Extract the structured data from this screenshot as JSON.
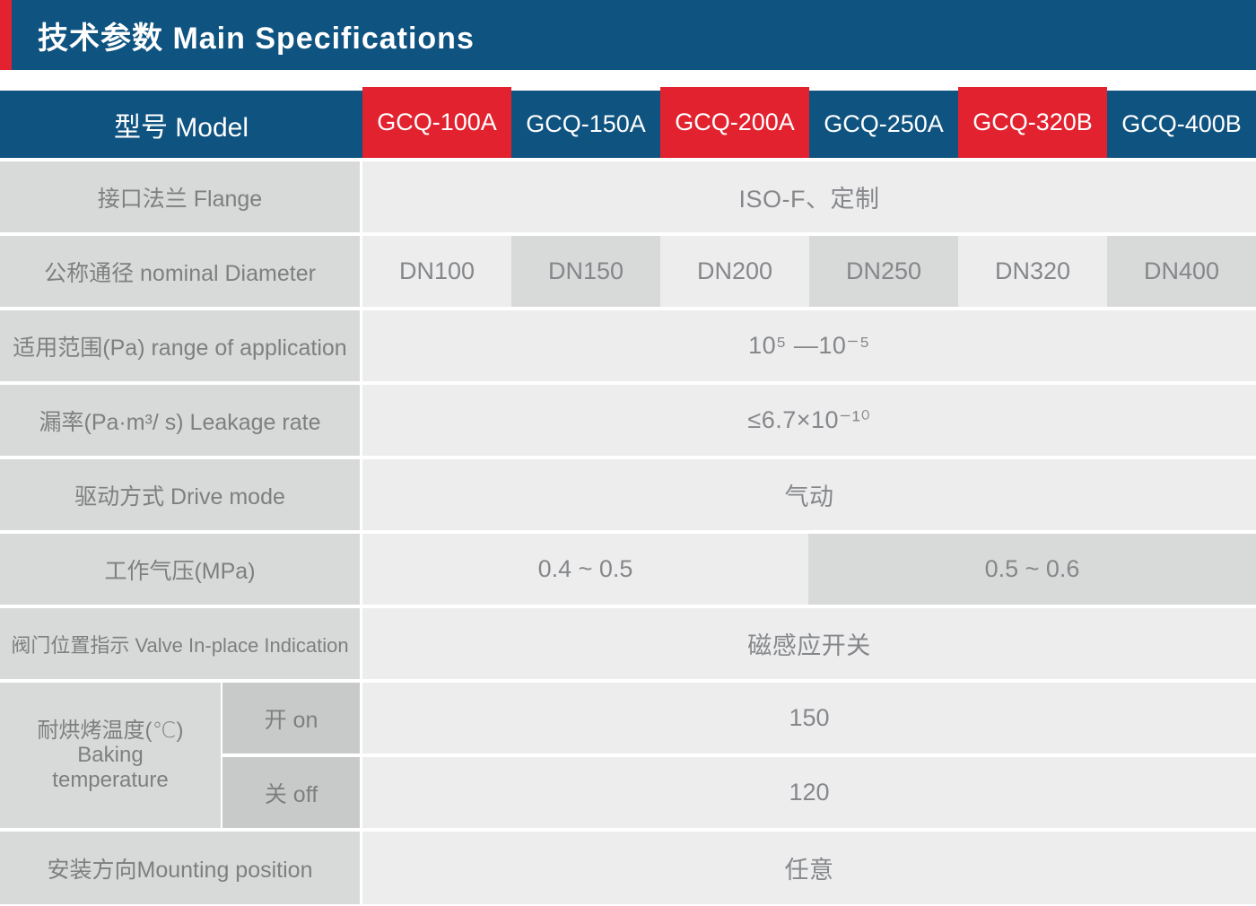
{
  "header": {
    "title": "技术参数 Main Specifications"
  },
  "colors": {
    "header_blue": "#0f5380",
    "accent_red": "#e3222f",
    "label_gray": "#d8dad9",
    "value_light_gray": "#ededee",
    "onoff_gray": "#c7cac9",
    "text_gray": "#7e807f",
    "white": "#ffffff"
  },
  "model_row": {
    "label": "型号 Model",
    "models": [
      "GCQ-100A",
      "GCQ-150A",
      "GCQ-200A",
      "GCQ-250A",
      "GCQ-320B",
      "GCQ-400B"
    ]
  },
  "rows": {
    "flange": {
      "label": "接口法兰 Flange",
      "value": "ISO-F、定制"
    },
    "diameter": {
      "label": "公称通径 nominal Diameter",
      "values": [
        "DN100",
        "DN150",
        "DN200",
        "DN250",
        "DN320",
        "DN400"
      ]
    },
    "range": {
      "label": "适用范围(Pa) range of application",
      "value": "10⁵ —10⁻⁵"
    },
    "leakage": {
      "label": "漏率(Pa·m³/ s) Leakage rate",
      "value": "≤6.7×10⁻¹⁰"
    },
    "drive": {
      "label": "驱动方式 Drive mode",
      "value": "气动"
    },
    "pressure": {
      "label": "工作气压(MPa)",
      "value_left": "0.4 ~ 0.5",
      "value_right": "0.5 ~ 0.6"
    },
    "valve_indication": {
      "label": "阀门位置指示 Valve In-place Indication",
      "value": "磁感应开关"
    },
    "baking": {
      "label_zh": "耐烘烤温度(℃)",
      "label_en_1": "Baking",
      "label_en_2": "temperature",
      "on_label": "开 on",
      "on_value": "150",
      "off_label": "关 off",
      "off_value": "120"
    },
    "mounting": {
      "label": "安装方向Mounting position",
      "value": "任意"
    }
  }
}
